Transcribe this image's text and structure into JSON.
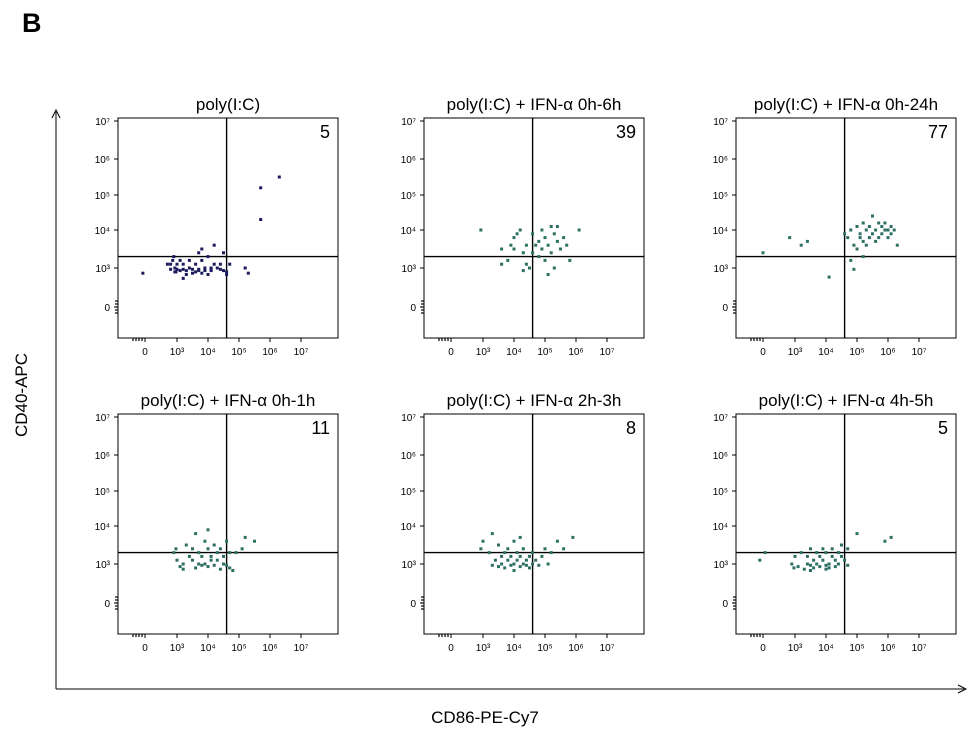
{
  "figure": {
    "panel_letter": "B",
    "y_axis_label": "CD40-APC",
    "x_axis_label": "CD86-PE-Cy7"
  },
  "colors": {
    "panel_1_dots": "#1b1b5e",
    "other_dots": "#2e6f63",
    "axes": "#000000"
  },
  "chart_data": [
    {
      "type": "scatter",
      "title": "poly(I:C)",
      "quadrant_value": "5",
      "xlabel": "",
      "ylabel": "",
      "x_ticks": [
        "0",
        "10³",
        "10⁴",
        "10⁵",
        "10⁶",
        "10⁷"
      ],
      "y_ticks": [
        "0",
        "10³",
        "10⁴",
        "10⁵",
        "10⁶",
        "10⁷"
      ],
      "x_gate": 4.6,
      "y_gate": 3.3,
      "points": [
        [
          -0.2,
          2.6
        ],
        [
          2.1,
          3.1
        ],
        [
          2.4,
          3.1
        ],
        [
          2.4,
          2.9
        ],
        [
          2.6,
          3.2
        ],
        [
          2.7,
          3.3
        ],
        [
          2.8,
          3.0
        ],
        [
          2.8,
          2.7
        ],
        [
          2.9,
          2.7
        ],
        [
          3.0,
          3.1
        ],
        [
          3.0,
          2.9
        ],
        [
          3.1,
          2.8
        ],
        [
          3.1,
          3.2
        ],
        [
          3.2,
          2.2
        ],
        [
          3.2,
          2.9
        ],
        [
          3.2,
          3.1
        ],
        [
          3.3,
          2.8
        ],
        [
          3.3,
          2.5
        ],
        [
          3.4,
          3.0
        ],
        [
          3.4,
          3.2
        ],
        [
          3.5,
          2.6
        ],
        [
          3.5,
          2.9
        ],
        [
          3.6,
          2.7
        ],
        [
          3.6,
          3.1
        ],
        [
          3.7,
          3.4
        ],
        [
          3.7,
          2.8
        ],
        [
          3.7,
          2.9
        ],
        [
          3.8,
          3.2
        ],
        [
          3.8,
          3.5
        ],
        [
          3.8,
          2.6
        ],
        [
          3.9,
          3.0
        ],
        [
          3.9,
          2.8
        ],
        [
          4.0,
          3.3
        ],
        [
          4.0,
          2.5
        ],
        [
          4.1,
          2.8
        ],
        [
          4.1,
          2.9
        ],
        [
          4.1,
          3.0
        ],
        [
          4.2,
          3.1
        ],
        [
          4.2,
          3.6
        ],
        [
          4.3,
          3.0
        ],
        [
          4.4,
          2.9
        ],
        [
          4.4,
          3.1
        ],
        [
          4.5,
          3.4
        ],
        [
          4.5,
          2.8
        ],
        [
          4.6,
          2.7
        ],
        [
          4.6,
          2.5
        ],
        [
          4.7,
          3.1
        ],
        [
          5.2,
          3.0
        ],
        [
          5.3,
          2.6
        ],
        [
          5.7,
          5.2
        ],
        [
          5.7,
          4.3
        ],
        [
          6.3,
          5.5
        ]
      ]
    },
    {
      "type": "scatter",
      "title": "poly(I:C) + IFN-α 0h-6h",
      "quadrant_value": "39",
      "xlabel": "",
      "ylabel": "",
      "x_ticks": [
        "0",
        "10³",
        "10⁴",
        "10⁵",
        "10⁶",
        "10⁷"
      ],
      "y_ticks": [
        "0",
        "10³",
        "10⁴",
        "10⁵",
        "10⁶",
        "10⁷"
      ],
      "x_gate": 4.6,
      "y_gate": 3.3,
      "points": [
        [
          2.8,
          4.0
        ],
        [
          3.6,
          3.5
        ],
        [
          3.6,
          3.1
        ],
        [
          3.8,
          3.2
        ],
        [
          3.9,
          3.6
        ],
        [
          4.0,
          3.5
        ],
        [
          4.1,
          3.9
        ],
        [
          4.2,
          4.0
        ],
        [
          4.3,
          3.4
        ],
        [
          4.3,
          2.8
        ],
        [
          4.4,
          3.6
        ],
        [
          4.4,
          3.1
        ],
        [
          4.5,
          3.0
        ],
        [
          4.6,
          3.4
        ],
        [
          4.6,
          3.9
        ],
        [
          4.7,
          3.6
        ],
        [
          4.8,
          3.7
        ],
        [
          4.8,
          3.3
        ],
        [
          4.9,
          4.0
        ],
        [
          4.9,
          3.5
        ],
        [
          5.0,
          3.8
        ],
        [
          5.0,
          3.2
        ],
        [
          5.1,
          2.5
        ],
        [
          5.1,
          3.6
        ],
        [
          5.2,
          4.1
        ],
        [
          5.2,
          3.4
        ],
        [
          5.3,
          3.9
        ],
        [
          5.3,
          3.0
        ],
        [
          5.4,
          3.7
        ],
        [
          5.4,
          4.1
        ],
        [
          5.5,
          3.5
        ],
        [
          5.6,
          3.8
        ],
        [
          5.7,
          3.6
        ],
        [
          5.8,
          3.2
        ],
        [
          6.1,
          4.0
        ],
        [
          4.0,
          3.8
        ]
      ]
    },
    {
      "type": "scatter",
      "title": "poly(I:C) + IFN-α 0h-24h",
      "quadrant_value": "77",
      "xlabel": "",
      "ylabel": "",
      "x_ticks": [
        "0",
        "10³",
        "10⁴",
        "10⁵",
        "10⁶",
        "10⁷"
      ],
      "y_ticks": [
        "0",
        "10³",
        "10⁴",
        "10⁵",
        "10⁶",
        "10⁷"
      ],
      "x_gate": 4.6,
      "y_gate": 3.3,
      "points": [
        [
          0.0,
          3.4
        ],
        [
          2.5,
          3.8
        ],
        [
          3.2,
          3.6
        ],
        [
          3.4,
          3.7
        ],
        [
          4.1,
          2.3
        ],
        [
          4.6,
          3.9
        ],
        [
          4.7,
          3.8
        ],
        [
          4.8,
          3.2
        ],
        [
          4.8,
          4.0
        ],
        [
          4.9,
          3.6
        ],
        [
          4.9,
          2.9
        ],
        [
          5.0,
          4.1
        ],
        [
          5.0,
          3.5
        ],
        [
          5.1,
          3.9
        ],
        [
          5.1,
          3.8
        ],
        [
          5.2,
          4.2
        ],
        [
          5.2,
          3.7
        ],
        [
          5.2,
          3.3
        ],
        [
          5.3,
          4.0
        ],
        [
          5.3,
          3.6
        ],
        [
          5.4,
          4.1
        ],
        [
          5.4,
          3.8
        ],
        [
          5.5,
          4.4
        ],
        [
          5.5,
          3.9
        ],
        [
          5.6,
          4.0
        ],
        [
          5.6,
          3.7
        ],
        [
          5.7,
          4.2
        ],
        [
          5.7,
          3.8
        ],
        [
          5.8,
          4.1
        ],
        [
          5.8,
          3.9
        ],
        [
          5.9,
          4.0
        ],
        [
          5.9,
          4.2
        ],
        [
          6.0,
          3.8
        ],
        [
          6.0,
          4.0
        ],
        [
          6.1,
          4.1
        ],
        [
          6.1,
          3.9
        ],
        [
          6.2,
          4.0
        ],
        [
          6.3,
          3.6
        ]
      ]
    },
    {
      "type": "scatter",
      "title": "poly(I:C) + IFN-α 0h-1h",
      "quadrant_value": "11",
      "xlabel": "",
      "ylabel": "",
      "x_ticks": [
        "0",
        "10³",
        "10⁴",
        "10⁵",
        "10⁶",
        "10⁷"
      ],
      "y_ticks": [
        "0",
        "10³",
        "10⁴",
        "10⁵",
        "10⁶",
        "10⁷"
      ],
      "x_gate": 4.6,
      "y_gate": 3.3,
      "points": [
        [
          2.7,
          3.3
        ],
        [
          2.9,
          3.4
        ],
        [
          3.0,
          3.1
        ],
        [
          3.1,
          2.8
        ],
        [
          3.2,
          2.6
        ],
        [
          3.2,
          3.0
        ],
        [
          3.3,
          3.5
        ],
        [
          3.4,
          3.2
        ],
        [
          3.5,
          3.1
        ],
        [
          3.5,
          3.4
        ],
        [
          3.6,
          2.7
        ],
        [
          3.7,
          3.0
        ],
        [
          3.7,
          3.3
        ],
        [
          3.8,
          3.2
        ],
        [
          3.8,
          2.9
        ],
        [
          3.9,
          3.6
        ],
        [
          3.9,
          3.0
        ],
        [
          4.0,
          3.4
        ],
        [
          4.0,
          2.8
        ],
        [
          4.1,
          3.2
        ],
        [
          4.1,
          3.1
        ],
        [
          4.2,
          3.5
        ],
        [
          4.2,
          2.9
        ],
        [
          4.3,
          3.3
        ],
        [
          4.3,
          3.1
        ],
        [
          4.4,
          2.6
        ],
        [
          4.4,
          3.4
        ],
        [
          4.5,
          3.0
        ],
        [
          4.5,
          3.2
        ],
        [
          4.6,
          3.6
        ],
        [
          4.6,
          2.9
        ],
        [
          4.7,
          2.7
        ],
        [
          4.7,
          3.3
        ],
        [
          4.8,
          2.5
        ],
        [
          4.9,
          3.3
        ],
        [
          5.1,
          3.4
        ],
        [
          5.2,
          3.7
        ],
        [
          5.5,
          3.6
        ],
        [
          3.6,
          3.8
        ],
        [
          4.0,
          3.9
        ]
      ]
    },
    {
      "type": "scatter",
      "title": "poly(I:C) + IFN-α 2h-3h",
      "quadrant_value": "8",
      "xlabel": "",
      "ylabel": "",
      "x_ticks": [
        "0",
        "10³",
        "10⁴",
        "10⁵",
        "10⁶",
        "10⁷"
      ],
      "y_ticks": [
        "0",
        "10³",
        "10⁴",
        "10⁵",
        "10⁶",
        "10⁷"
      ],
      "x_gate": 4.6,
      "y_gate": 3.3,
      "points": [
        [
          2.8,
          3.4
        ],
        [
          3.0,
          3.6
        ],
        [
          3.2,
          3.3
        ],
        [
          3.3,
          2.9
        ],
        [
          3.4,
          3.1
        ],
        [
          3.5,
          3.5
        ],
        [
          3.5,
          2.8
        ],
        [
          3.6,
          3.2
        ],
        [
          3.6,
          3.0
        ],
        [
          3.7,
          3.3
        ],
        [
          3.7,
          2.7
        ],
        [
          3.8,
          3.1
        ],
        [
          3.8,
          3.4
        ],
        [
          3.9,
          2.9
        ],
        [
          3.9,
          3.2
        ],
        [
          4.0,
          3.0
        ],
        [
          4.0,
          3.6
        ],
        [
          4.0,
          2.5
        ],
        [
          4.1,
          3.1
        ],
        [
          4.1,
          3.3
        ],
        [
          4.2,
          2.8
        ],
        [
          4.2,
          3.2
        ],
        [
          4.3,
          3.0
        ],
        [
          4.3,
          3.4
        ],
        [
          4.4,
          3.1
        ],
        [
          4.4,
          2.9
        ],
        [
          4.5,
          3.2
        ],
        [
          4.5,
          2.7
        ],
        [
          4.6,
          3.0
        ],
        [
          4.6,
          3.3
        ],
        [
          4.7,
          3.1
        ],
        [
          4.8,
          2.9
        ],
        [
          4.9,
          3.2
        ],
        [
          5.0,
          3.4
        ],
        [
          5.1,
          3.0
        ],
        [
          5.2,
          3.3
        ],
        [
          5.4,
          3.6
        ],
        [
          5.6,
          3.4
        ],
        [
          5.9,
          3.7
        ],
        [
          3.3,
          3.8
        ],
        [
          4.2,
          3.7
        ]
      ]
    },
    {
      "type": "scatter",
      "title": "poly(I:C) + IFN-α 4h-5h",
      "quadrant_value": "5",
      "xlabel": "",
      "ylabel": "",
      "x_ticks": [
        "0",
        "10³",
        "10⁴",
        "10⁵",
        "10⁶",
        "10⁷"
      ],
      "y_ticks": [
        "0",
        "10³",
        "10⁴",
        "10⁵",
        "10⁶",
        "10⁷"
      ],
      "x_gate": 4.6,
      "y_gate": 3.3,
      "points": [
        [
          -0.3,
          3.1
        ],
        [
          0.2,
          3.3
        ],
        [
          2.7,
          3.0
        ],
        [
          2.9,
          2.7
        ],
        [
          3.0,
          3.2
        ],
        [
          3.1,
          2.8
        ],
        [
          3.2,
          3.3
        ],
        [
          3.3,
          2.6
        ],
        [
          3.4,
          3.0
        ],
        [
          3.4,
          3.2
        ],
        [
          3.5,
          2.9
        ],
        [
          3.5,
          3.4
        ],
        [
          3.6,
          3.1
        ],
        [
          3.6,
          2.7
        ],
        [
          3.7,
          3.3
        ],
        [
          3.7,
          3.0
        ],
        [
          3.8,
          2.8
        ],
        [
          3.8,
          3.2
        ],
        [
          3.9,
          3.1
        ],
        [
          3.9,
          3.4
        ],
        [
          4.0,
          2.9
        ],
        [
          4.0,
          3.3
        ],
        [
          4.1,
          3.0
        ],
        [
          4.1,
          2.7
        ],
        [
          4.2,
          3.2
        ],
        [
          4.2,
          3.4
        ],
        [
          4.3,
          3.1
        ],
        [
          4.3,
          2.8
        ],
        [
          4.4,
          3.3
        ],
        [
          4.4,
          3.0
        ],
        [
          4.5,
          3.5
        ],
        [
          4.5,
          3.2
        ],
        [
          4.6,
          3.1
        ],
        [
          4.7,
          3.4
        ],
        [
          4.7,
          2.9
        ],
        [
          5.0,
          3.8
        ],
        [
          5.9,
          3.6
        ],
        [
          6.1,
          3.7
        ],
        [
          3.5,
          2.5
        ],
        [
          4.0,
          2.6
        ]
      ]
    }
  ]
}
